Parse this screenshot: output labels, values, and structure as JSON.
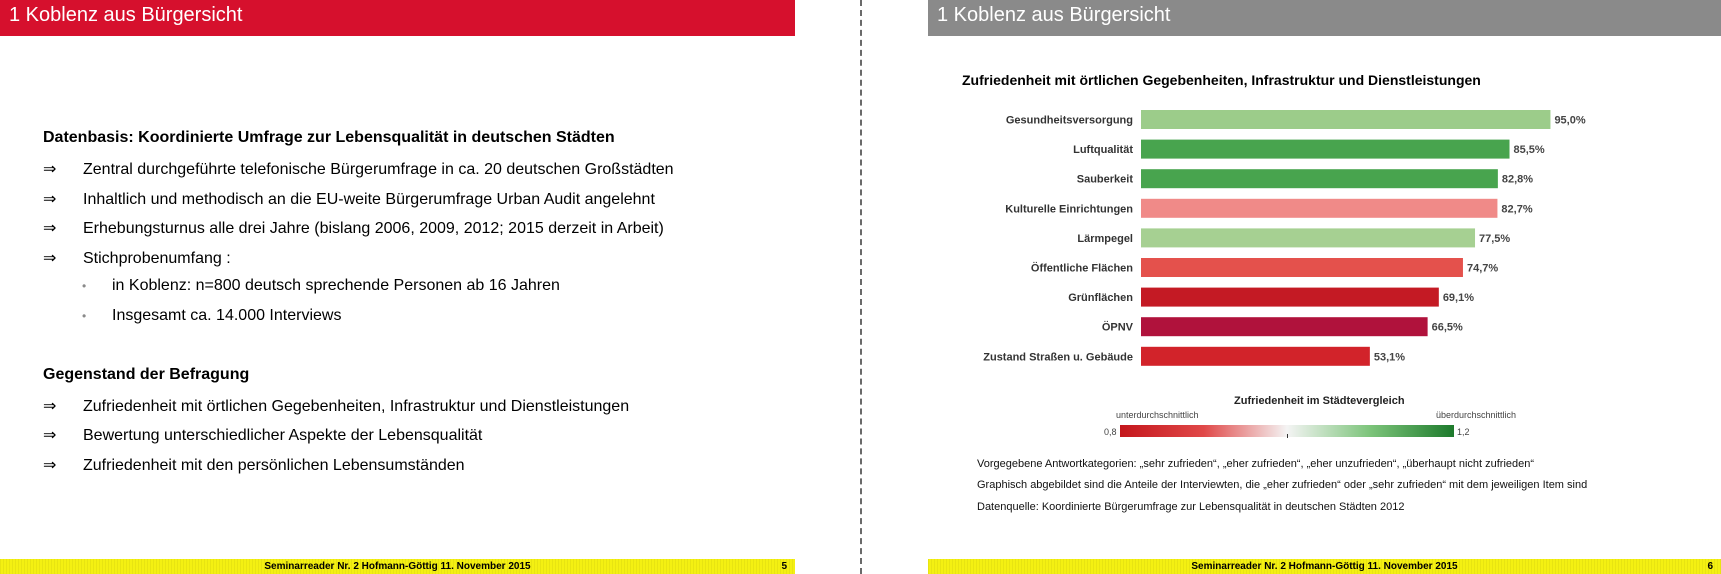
{
  "left": {
    "header_title": "1 Koblenz aus Bürgersicht",
    "section1_title": "Datenbasis: Koordinierte Umfrage zur Lebensqualität in deutschen Städten",
    "bullet_symbol": "⇒",
    "section1_bullets": [
      "Zentral durchgeführte telefonische Bürgerumfrage in ca. 20 deutschen Großstädten",
      "Inhaltlich und methodisch an die EU-weite Bürgerumfrage Urban Audit angelehnt",
      "Erhebungsturnus alle drei Jahre (bislang 2006, 2009, 2012; 2015 derzeit in Arbeit)",
      "Stichprobenumfang :"
    ],
    "sub_bullets": [
      "in Koblenz: n=800 deutsch sprechende Personen ab 16 Jahren",
      "Insgesamt ca. 14.000 Interviews"
    ],
    "section2_title": "Gegenstand der Befragung",
    "section2_bullets": [
      "Zufriedenheit mit örtlichen Gegebenheiten, Infrastruktur und Dienstleistungen",
      "Bewertung unterschiedlicher Aspekte der Lebensqualität",
      "Zufriedenheit mit den persönlichen Lebensumständen"
    ],
    "footer_text": "Seminarreader Nr. 2 Hofmann-Göttig 11. November 2015",
    "page_number": "5"
  },
  "right": {
    "header_title": "1 Koblenz aus Bürgersicht",
    "legend": {
      "title": "Zufriedenheit im Städtevergleich",
      "low_label": "unterdurchschnittlich",
      "high_label": "überdurchschnittlich",
      "min_value": "0,8",
      "max_value": "1,2"
    },
    "notes": [
      "Vorgegebene Antwortkategorien: „sehr zufrieden“, „eher zufrieden“, „eher unzufrieden“, „überhaupt nicht zufrieden“",
      "Graphisch abgebildet sind die Anteile der Interviewten, die „eher zufrieden“ oder „sehr zufrieden“ mit dem jeweiligen Item sind",
      "Datenquelle: Koordinierte Bürgerumfrage zur Lebensqualität in deutschen Städten 2012"
    ],
    "footer_text": "Seminarreader Nr. 2 Hofmann-Göttig 11. November 2015",
    "page_number": "6"
  },
  "chart_data": {
    "type": "bar",
    "orientation": "horizontal",
    "title": "Zufriedenheit mit örtlichen Gegebenheiten, Infrastruktur und Dienstleistungen",
    "categories": [
      "Gesundheitsversorgung",
      "Luftqualität",
      "Sauberkeit",
      "Kulturelle Einrichtungen",
      "Lärmpegel",
      "Öffentliche Flächen",
      "Grünflächen",
      "ÖPNV",
      "Zustand Straßen u. Gebäude"
    ],
    "values": [
      95.0,
      85.5,
      82.8,
      82.7,
      77.5,
      74.7,
      69.1,
      66.5,
      53.1
    ],
    "value_labels": [
      "95,0%",
      "85,5%",
      "82,8%",
      "82,7%",
      "77,5%",
      "74,7%",
      "69,1%",
      "66,5%",
      "53,1%"
    ],
    "bar_colors": [
      "#9ccc8a",
      "#48a44e",
      "#48a44e",
      "#f08a88",
      "#a6d092",
      "#e4514c",
      "#c41a24",
      "#b0123c",
      "#d2232a"
    ],
    "xlim": [
      0,
      100
    ],
    "grid": false,
    "legend": "bottom"
  }
}
